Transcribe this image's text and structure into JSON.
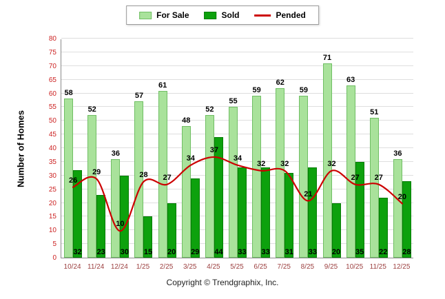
{
  "legend": {
    "for_sale": "For Sale",
    "sold": "Sold",
    "pended": "Pended"
  },
  "y_axis_title": "Number of Homes",
  "footer": "Copyright © Trendgraphix, Inc.",
  "colors": {
    "for_sale_fill": "#a9e29b",
    "for_sale_border": "#6fbe63",
    "sold_fill": "#0da10d",
    "sold_border": "#067c06",
    "pended_line": "#cc0000",
    "y_tick_color": "#cc2222",
    "x_tick_color": "#9c4040",
    "grid_color": "#dedede",
    "label_color": "#000000"
  },
  "chart_data": {
    "type": "bar",
    "title": "",
    "xlabel": "",
    "ylabel": "Number of Homes",
    "categories": [
      "10/24",
      "11/24",
      "12/24",
      "1/25",
      "2/25",
      "3/25",
      "4/25",
      "5/25",
      "6/25",
      "7/25",
      "8/25",
      "9/25",
      "10/25",
      "11/25",
      "12/25"
    ],
    "series": [
      {
        "name": "For Sale",
        "type": "bar",
        "color": "#a9e29b",
        "values": [
          58,
          52,
          36,
          57,
          61,
          48,
          52,
          55,
          59,
          62,
          59,
          71,
          63,
          51,
          36
        ]
      },
      {
        "name": "Sold",
        "type": "bar",
        "color": "#0da10d",
        "values": [
          32,
          23,
          30,
          15,
          20,
          29,
          44,
          33,
          33,
          31,
          33,
          20,
          35,
          22,
          28
        ]
      },
      {
        "name": "Pended",
        "type": "line",
        "color": "#cc0000",
        "values": [
          26,
          29,
          10,
          28,
          27,
          34,
          37,
          34,
          32,
          32,
          21,
          32,
          27,
          27,
          20
        ]
      }
    ],
    "ylim": [
      0,
      80
    ],
    "ytick_step": 5,
    "grid": true,
    "legend_position": "top"
  }
}
